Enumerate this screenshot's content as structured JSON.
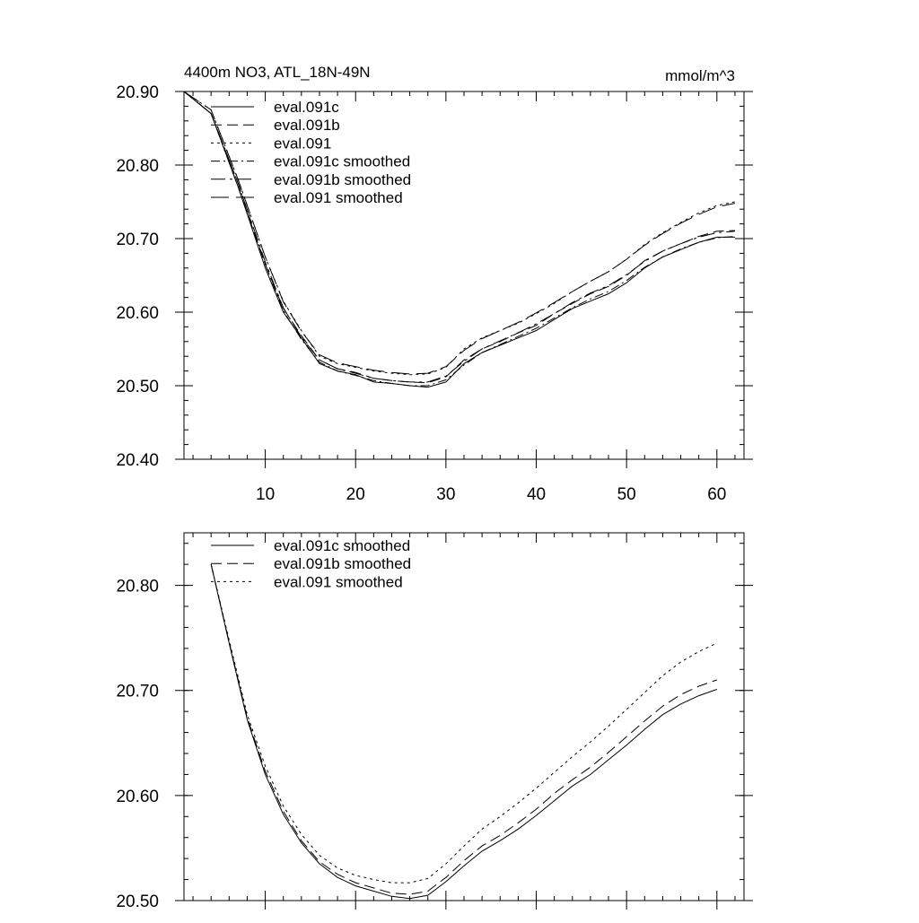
{
  "chart_data": [
    {
      "type": "line",
      "title": "4400m NO3, ATL_18N-49N",
      "units": "mmol/m^3",
      "xlim": [
        1,
        63
      ],
      "ylim": [
        20.4,
        20.9
      ],
      "x_ticks": [
        10,
        20,
        30,
        40,
        50,
        60
      ],
      "y_ticks": [
        20.4,
        20.5,
        20.6,
        20.7,
        20.8,
        20.9
      ],
      "y_tick_labels": [
        "20.40",
        "20.50",
        "20.60",
        "20.70",
        "20.80",
        "20.90"
      ],
      "legend_position": "top-left",
      "series": [
        {
          "name": "eval.091c",
          "style": "solid",
          "x": [
            1,
            4,
            7,
            10,
            12,
            14,
            16,
            18,
            20,
            22,
            24,
            26,
            28,
            30,
            32,
            34,
            36,
            38,
            40,
            42,
            44,
            46,
            48,
            50,
            52,
            54,
            56,
            58,
            60,
            62
          ],
          "y": [
            20.9,
            20.87,
            20.77,
            20.66,
            20.6,
            20.565,
            20.53,
            20.52,
            20.515,
            20.505,
            20.503,
            20.5,
            20.498,
            20.505,
            20.53,
            20.545,
            20.555,
            20.565,
            20.575,
            20.59,
            20.605,
            20.615,
            20.625,
            20.64,
            20.66,
            20.675,
            20.685,
            20.695,
            20.702,
            20.702
          ]
        },
        {
          "name": "eval.091b",
          "style": "dashed",
          "x": [
            1,
            4,
            7,
            10,
            12,
            14,
            16,
            18,
            20,
            22,
            24,
            26,
            28,
            30,
            32,
            34,
            36,
            38,
            40,
            42,
            44,
            46,
            48,
            50,
            52,
            54,
            56,
            58,
            60,
            62
          ],
          "y": [
            20.9,
            20.87,
            20.77,
            20.665,
            20.605,
            20.568,
            20.535,
            20.523,
            20.518,
            20.51,
            20.507,
            20.505,
            20.504,
            20.512,
            20.535,
            20.55,
            20.56,
            20.572,
            20.582,
            20.598,
            20.612,
            20.625,
            20.635,
            20.65,
            20.67,
            20.683,
            20.693,
            20.703,
            20.71,
            20.711
          ]
        },
        {
          "name": "eval.091",
          "style": "dotted",
          "x": [
            1,
            4,
            7,
            10,
            12,
            14,
            16,
            18,
            20,
            22,
            24,
            26,
            28,
            30,
            32,
            34,
            36,
            38,
            40,
            42,
            44,
            46,
            48,
            50,
            52,
            54,
            56,
            58,
            60,
            62
          ],
          "y": [
            20.9,
            20.875,
            20.78,
            20.675,
            20.615,
            20.575,
            20.54,
            20.53,
            20.525,
            20.52,
            20.517,
            20.515,
            20.516,
            20.525,
            20.55,
            20.565,
            20.575,
            20.585,
            20.598,
            20.612,
            20.628,
            20.642,
            20.655,
            20.672,
            20.692,
            20.708,
            20.722,
            20.735,
            20.745,
            20.75
          ]
        },
        {
          "name": "eval.091c smoothed",
          "style": "dash-dot",
          "x": [
            1,
            4,
            7,
            10,
            12,
            14,
            16,
            18,
            20,
            22,
            24,
            26,
            28,
            30,
            32,
            34,
            36,
            38,
            40,
            42,
            44,
            46,
            48,
            50,
            52,
            54,
            56,
            58,
            60,
            62
          ],
          "y": [
            20.9,
            20.87,
            20.775,
            20.665,
            20.602,
            20.563,
            20.532,
            20.52,
            20.514,
            20.507,
            20.503,
            20.5,
            20.5,
            20.508,
            20.528,
            20.545,
            20.556,
            20.567,
            20.578,
            20.592,
            20.606,
            20.618,
            20.628,
            20.643,
            20.661,
            20.675,
            20.686,
            20.695,
            20.701,
            20.703
          ]
        },
        {
          "name": "eval.091b smoothed",
          "style": "long-dash-dot",
          "x": [
            1,
            4,
            7,
            10,
            12,
            14,
            16,
            18,
            20,
            22,
            24,
            26,
            28,
            30,
            32,
            34,
            36,
            38,
            40,
            42,
            44,
            46,
            48,
            50,
            52,
            54,
            56,
            58,
            60,
            62
          ],
          "y": [
            20.9,
            20.87,
            20.775,
            20.668,
            20.606,
            20.566,
            20.535,
            20.523,
            20.517,
            20.51,
            20.507,
            20.505,
            20.505,
            20.513,
            20.533,
            20.55,
            20.561,
            20.572,
            20.584,
            20.598,
            20.613,
            20.626,
            20.636,
            20.651,
            20.669,
            20.683,
            20.693,
            20.702,
            20.708,
            20.71
          ]
        },
        {
          "name": "eval.091 smoothed",
          "style": "long-dash",
          "x": [
            1,
            4,
            7,
            10,
            12,
            14,
            16,
            18,
            20,
            22,
            24,
            26,
            28,
            30,
            32,
            34,
            36,
            38,
            40,
            42,
            44,
            46,
            48,
            50,
            52,
            54,
            56,
            58,
            60,
            62
          ],
          "y": [
            20.9,
            20.875,
            20.78,
            20.675,
            20.614,
            20.574,
            20.542,
            20.531,
            20.526,
            20.521,
            20.518,
            20.516,
            20.517,
            20.526,
            20.548,
            20.564,
            20.575,
            20.586,
            20.599,
            20.613,
            20.628,
            20.642,
            20.655,
            20.672,
            20.691,
            20.707,
            20.721,
            20.733,
            20.743,
            20.748
          ]
        }
      ]
    },
    {
      "type": "line",
      "xlim": [
        1,
        63
      ],
      "ylim": [
        20.5,
        20.85
      ],
      "x_ticks": [
        10,
        20,
        30,
        40,
        50,
        60
      ],
      "y_ticks": [
        20.5,
        20.6,
        20.7,
        20.8
      ],
      "y_tick_labels": [
        "20.50",
        "20.60",
        "20.70",
        "20.80"
      ],
      "legend_position": "top-left",
      "series": [
        {
          "name": "eval.091c smoothed",
          "style": "solid",
          "x": [
            4,
            6,
            8,
            10,
            12,
            14,
            16,
            18,
            20,
            22,
            24,
            26,
            28,
            30,
            32,
            34,
            36,
            38,
            40,
            42,
            44,
            46,
            48,
            50,
            52,
            54,
            56,
            58,
            60
          ],
          "y": [
            20.82,
            20.745,
            20.672,
            20.62,
            20.582,
            20.555,
            20.535,
            20.522,
            20.514,
            20.509,
            20.504,
            20.502,
            20.505,
            20.518,
            20.533,
            20.547,
            20.557,
            20.568,
            20.581,
            20.595,
            20.609,
            20.62,
            20.634,
            20.648,
            20.663,
            20.677,
            20.687,
            20.695,
            20.701
          ]
        },
        {
          "name": "eval.091b smoothed",
          "style": "dashed",
          "x": [
            4,
            6,
            8,
            10,
            12,
            14,
            16,
            18,
            20,
            22,
            24,
            26,
            28,
            30,
            32,
            34,
            36,
            38,
            40,
            42,
            44,
            46,
            48,
            50,
            52,
            54,
            56,
            58,
            60
          ],
          "y": [
            20.82,
            20.746,
            20.674,
            20.623,
            20.585,
            20.557,
            20.537,
            20.525,
            20.517,
            20.512,
            20.507,
            20.506,
            20.509,
            20.522,
            20.538,
            20.552,
            20.562,
            20.574,
            20.587,
            20.602,
            20.615,
            20.627,
            20.641,
            20.656,
            20.671,
            20.685,
            20.696,
            20.704,
            20.71
          ]
        },
        {
          "name": "eval.091 smoothed",
          "style": "dotted",
          "x": [
            4,
            6,
            8,
            10,
            12,
            14,
            16,
            18,
            20,
            22,
            24,
            26,
            28,
            30,
            32,
            34,
            36,
            38,
            40,
            42,
            44,
            46,
            48,
            50,
            52,
            54,
            56,
            58,
            60
          ],
          "y": [
            20.82,
            20.748,
            20.677,
            20.628,
            20.59,
            20.563,
            20.543,
            20.531,
            20.524,
            20.52,
            20.517,
            20.517,
            20.521,
            20.535,
            20.552,
            20.568,
            20.58,
            20.593,
            20.607,
            20.622,
            20.637,
            20.651,
            20.666,
            20.682,
            20.698,
            20.714,
            20.727,
            20.737,
            20.745
          ]
        }
      ]
    }
  ]
}
